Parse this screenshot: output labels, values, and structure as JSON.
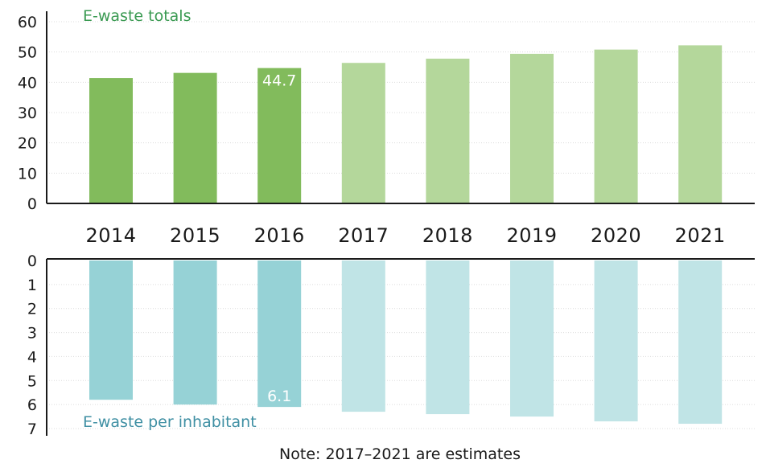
{
  "chart_data": {
    "type": "bar",
    "categories": [
      "2014",
      "2015",
      "2016",
      "2017",
      "2018",
      "2019",
      "2020",
      "2021"
    ],
    "series": [
      {
        "name": "E-waste totals",
        "values": [
          41.4,
          43.1,
          44.7,
          46.4,
          47.8,
          49.4,
          50.8,
          52.2
        ],
        "ylim": [
          0,
          60
        ],
        "yticks": [
          0,
          10,
          20,
          30,
          40,
          50,
          60
        ],
        "color_actual": "#82bb5c",
        "color_estimate": "#b4d79b",
        "labeled_value": "44.7"
      },
      {
        "name": "E-waste per inhabitant",
        "values": [
          5.8,
          6.0,
          6.1,
          6.3,
          6.4,
          6.5,
          6.7,
          6.8
        ],
        "ylim": [
          0,
          7
        ],
        "yticks": [
          0,
          1,
          2,
          3,
          4,
          5,
          6,
          7
        ],
        "inverted": true,
        "color_actual": "#96d2d6",
        "color_estimate": "#c0e4e6",
        "labeled_value": "6.1"
      }
    ],
    "estimate_from": "2017",
    "labeled_category": "2016",
    "grid": true,
    "note": "Note: 2017–2021 are estimates"
  }
}
